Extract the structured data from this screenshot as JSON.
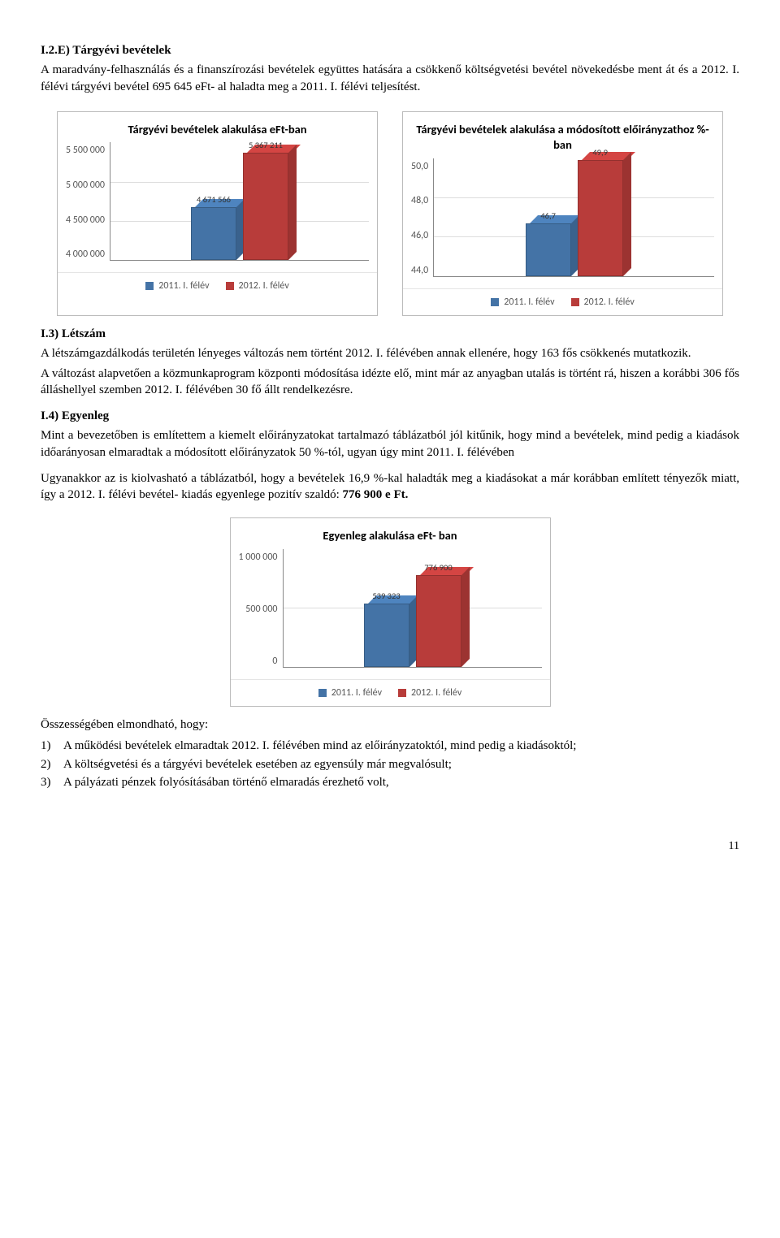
{
  "section_I2E": {
    "heading": "I.2.E) Tárgyévi bevételek",
    "para": "A maradvány-felhasználás és a finanszírozási bevételek együttes hatására a csökkenő költségvetési bevétel növekedésbe ment át és a 2012. I. félévi tárgyévi bevétel 695 645 eFt- al haladta meg a 2011. I. félévi teljesítést."
  },
  "chart_eft": {
    "title": "Tárgyévi bevételek alakulása eFt-ban",
    "type": "bar",
    "y_min": 4000000,
    "y_max": 5500000,
    "ticks": [
      "5 500 000",
      "5 000 000",
      "4 500 000",
      "4 000 000"
    ],
    "bars": [
      {
        "value": 4671566,
        "label": "4 671 566",
        "color": "#4473a6"
      },
      {
        "value": 5367211,
        "label": "5 367 211",
        "color": "#b83c3a"
      }
    ],
    "legend": [
      {
        "label": "2011. I. félév",
        "color": "#4473a6"
      },
      {
        "label": "2012. I. félév",
        "color": "#b83c3a"
      }
    ],
    "background_color": "#ffffff",
    "grid_color": "#dddddd"
  },
  "chart_pct": {
    "title": "Tárgyévi bevételek alakulása a módosított előirányzathoz %- ban",
    "type": "bar",
    "y_min": 44.0,
    "y_max": 50.0,
    "ticks": [
      "50,0",
      "48,0",
      "46,0",
      "44,0"
    ],
    "bars": [
      {
        "value": 46.7,
        "label": "46,7",
        "color": "#4473a6"
      },
      {
        "value": 49.9,
        "label": "49,9",
        "color": "#b83c3a"
      }
    ],
    "legend": [
      {
        "label": "2011. I. félév",
        "color": "#4473a6"
      },
      {
        "label": "2012. I. félév",
        "color": "#b83c3a"
      }
    ],
    "background_color": "#ffffff",
    "grid_color": "#dddddd"
  },
  "section_I3": {
    "heading": "I.3) Létszám",
    "para1": "A létszámgazdálkodás területén lényeges változás nem történt 2012. I. félévében annak ellenére, hogy 163 fős csökkenés mutatkozik.",
    "para2": "A változást alapvetően a közmunkaprogram központi módosítása idézte elő, mint már az anyagban utalás is történt rá, hiszen a korábbi 306 fős álláshellyel szemben 2012. I. félévében 30 fő állt rendelkezésre."
  },
  "section_I4": {
    "heading": "I.4) Egyenleg",
    "para1": "Mint a bevezetőben is említettem a kiemelt előirányzatokat tartalmazó táblázatból jól kitűnik, hogy mind a bevételek, mind pedig a kiadások időarányosan elmaradtak a módosított előirányzatok 50 %-tól, ugyan úgy mint 2011. I. félévében",
    "para2_pre": "Ugyanakkor az is kiolvasható a táblázatból, hogy a bevételek 16,9 %-kal  haladták meg a kiadásokat a már korábban említett tényezők miatt, így a 2012. I. félévi  bevétel- kiadás egyenlege  pozitív szaldó: ",
    "para2_bold": "776 900 e Ft."
  },
  "chart_egy": {
    "title": "Egyenleg alakulása eFt- ban",
    "type": "bar",
    "y_min": 0,
    "y_max": 1000000,
    "ticks": [
      "1 000 000",
      "500 000",
      "0"
    ],
    "bars": [
      {
        "value": 539323,
        "label": "539 323",
        "color": "#4473a6"
      },
      {
        "value": 776900,
        "label": "776 900",
        "color": "#b83c3a"
      }
    ],
    "legend": [
      {
        "label": "2011. I. félév",
        "color": "#4473a6"
      },
      {
        "label": "2012. I. félév",
        "color": "#b83c3a"
      }
    ],
    "background_color": "#ffffff",
    "grid_color": "#dddddd"
  },
  "summary": {
    "lead": "Összességében elmondható, hogy:",
    "items": [
      {
        "num": "1)",
        "text": "A  működési bevételek elmaradtak 2012. I. félévében mind az előirányzatoktól, mind pedig a kiadásoktól;"
      },
      {
        "num": "2)",
        "text": "A költségvetési és a tárgyévi bevételek esetében az egyensúly már megvalósult;"
      },
      {
        "num": "3)",
        "text": "A pályázati pénzek folyósításában történő elmaradás érezhető volt,"
      }
    ]
  },
  "page_number": "11"
}
